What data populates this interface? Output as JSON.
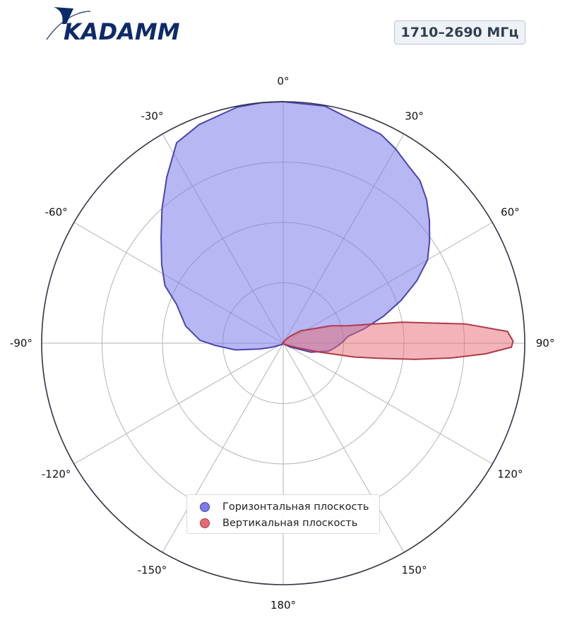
{
  "logo": {
    "text": "KADAMM",
    "icon": "kadamm-logo-icon",
    "color": "#0d2a6b"
  },
  "frequency_badge": "1710–2690 МГц",
  "chart_data": {
    "type": "polar-area",
    "theta_zero": "top",
    "theta_direction": "clockwise",
    "theta_ticks": [
      0,
      30,
      60,
      90,
      120,
      150,
      180,
      -150,
      -120,
      -90,
      -60,
      -30
    ],
    "theta_tick_labels": [
      "0°",
      "30°",
      "60°",
      "90°",
      "120°",
      "150°",
      "180°",
      "-150°",
      "-120°",
      "-90°",
      "-60°",
      "-30°"
    ],
    "radial_grid_fraction": [
      0.25,
      0.5,
      0.75,
      1.0
    ],
    "grid": true,
    "legend_placement": "lower-center",
    "series": [
      {
        "name": "Горизонтальная плоскость",
        "fill": "#7b7beb",
        "fill_opacity": 0.55,
        "stroke": "#4a44b0",
        "points": [
          [
            0,
            1.0
          ],
          [
            10,
            0.997
          ],
          [
            20,
            0.96
          ],
          [
            25,
            0.955
          ],
          [
            30,
            0.93
          ],
          [
            35,
            0.9
          ],
          [
            40,
            0.88
          ],
          [
            45,
            0.84
          ],
          [
            50,
            0.79
          ],
          [
            55,
            0.74
          ],
          [
            60,
            0.69
          ],
          [
            65,
            0.61
          ],
          [
            70,
            0.52
          ],
          [
            75,
            0.43
          ],
          [
            80,
            0.34
          ],
          [
            84,
            0.27
          ],
          [
            88,
            0.25
          ],
          [
            92,
            0.23
          ],
          [
            96,
            0.21
          ],
          [
            100,
            0.19
          ],
          [
            108,
            0.12
          ],
          [
            120,
            0.03
          ],
          [
            135,
            0.005
          ],
          [
            180,
            0.003
          ],
          [
            225,
            0.008
          ],
          [
            250,
            0.05
          ],
          [
            256,
            0.1
          ],
          [
            262,
            0.2
          ],
          [
            268,
            0.28
          ],
          [
            272,
            0.345
          ],
          [
            280,
            0.41
          ],
          [
            290,
            0.47
          ],
          [
            296,
            0.545
          ],
          [
            303,
            0.6
          ],
          [
            311,
            0.67
          ],
          [
            318,
            0.75
          ],
          [
            325,
            0.84
          ],
          [
            332,
            0.94
          ],
          [
            339,
            0.97
          ],
          [
            349,
            0.996
          ],
          [
            355,
            1.0
          ],
          [
            360,
            1.0
          ]
        ]
      },
      {
        "name": "Вертикальная плоскость",
        "fill": "#e66a72",
        "fill_opacity": 0.5,
        "stroke": "#b03a48",
        "points": [
          [
            0,
            0.003
          ],
          [
            30,
            0.015
          ],
          [
            45,
            0.04
          ],
          [
            55,
            0.09
          ],
          [
            60,
            0.11
          ],
          [
            70,
            0.21
          ],
          [
            75,
            0.28
          ],
          [
            80,
            0.5
          ],
          [
            84,
            0.76
          ],
          [
            87,
            0.93
          ],
          [
            89.5,
            0.952
          ],
          [
            91,
            0.945
          ],
          [
            93,
            0.84
          ],
          [
            95,
            0.7
          ],
          [
            97,
            0.55
          ],
          [
            99,
            0.4
          ],
          [
            101,
            0.3
          ],
          [
            104,
            0.15
          ],
          [
            108,
            0.06
          ],
          [
            115,
            0.02
          ],
          [
            130,
            0.006
          ],
          [
            180,
            0.003
          ],
          [
            270,
            0.003
          ],
          [
            360,
            0.003
          ]
        ]
      }
    ]
  }
}
